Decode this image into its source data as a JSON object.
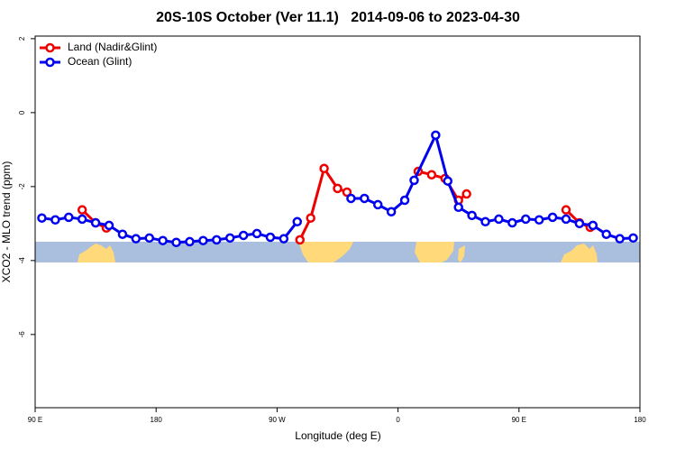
{
  "chart_data": {
    "type": "line",
    "title": "20S-10S October (Ver 11.1)   2014-09-06 to 2023-04-30",
    "x_label": "Longitude (deg E)",
    "y_label": "XCO2 - MLO trend (ppm)",
    "xlim": [
      90,
      540
    ],
    "xticks": [
      {
        "value": 90,
        "label": "90 E"
      },
      180,
      {
        "value": 270,
        "label": "90 W"
      },
      {
        "value": 360,
        "label": "0"
      },
      {
        "value": 450,
        "label": "90 E"
      },
      {
        "value": 540,
        "label": "180"
      }
    ],
    "ylim": [
      -7.98,
      2.07
    ],
    "yticks": [
      2,
      0,
      -2,
      -4,
      -6
    ],
    "legend": "top-left",
    "series": [
      {
        "name": "Land (Nadir&Glint)",
        "color": "#ee0000",
        "x": [
          125,
          135,
          143,
          null,
          287,
          295,
          305,
          315,
          322,
          null,
          375,
          385,
          395,
          405,
          411,
          null,
          485,
          495,
          503
        ],
        "values": [
          -2.63,
          -2.98,
          -3.12,
          null,
          -3.44,
          -2.85,
          -1.51,
          -2.05,
          -2.15,
          null,
          -1.59,
          -1.68,
          -1.78,
          -2.37,
          -2.2,
          null,
          -2.63,
          -2.98,
          -3.1
        ]
      },
      {
        "name": "Ocean (Glint)",
        "color": "#0000ee",
        "x": [
          95,
          105,
          115,
          125,
          135,
          145,
          155,
          165,
          175,
          185,
          195,
          205,
          215,
          225,
          235,
          245,
          255,
          265,
          275,
          285,
          null,
          325,
          335,
          345,
          355,
          365,
          372,
          388,
          397,
          405,
          415,
          425,
          435,
          445,
          455,
          465,
          475,
          485,
          495,
          505,
          515,
          525,
          535
        ],
        "values": [
          -2.85,
          -2.9,
          -2.83,
          -2.88,
          -2.98,
          -3.05,
          -3.29,
          -3.41,
          -3.39,
          -3.46,
          -3.51,
          -3.49,
          -3.46,
          -3.44,
          -3.39,
          -3.32,
          -3.27,
          -3.37,
          -3.41,
          -2.95,
          null,
          -2.32,
          -2.32,
          -2.49,
          -2.68,
          -2.37,
          -1.83,
          -0.61,
          -1.85,
          -2.56,
          -2.78,
          -2.95,
          -2.88,
          -2.98,
          -2.88,
          -2.9,
          -2.83,
          -2.88,
          -3.0,
          -3.05,
          -3.29,
          -3.41,
          -3.39
        ]
      }
    ]
  }
}
